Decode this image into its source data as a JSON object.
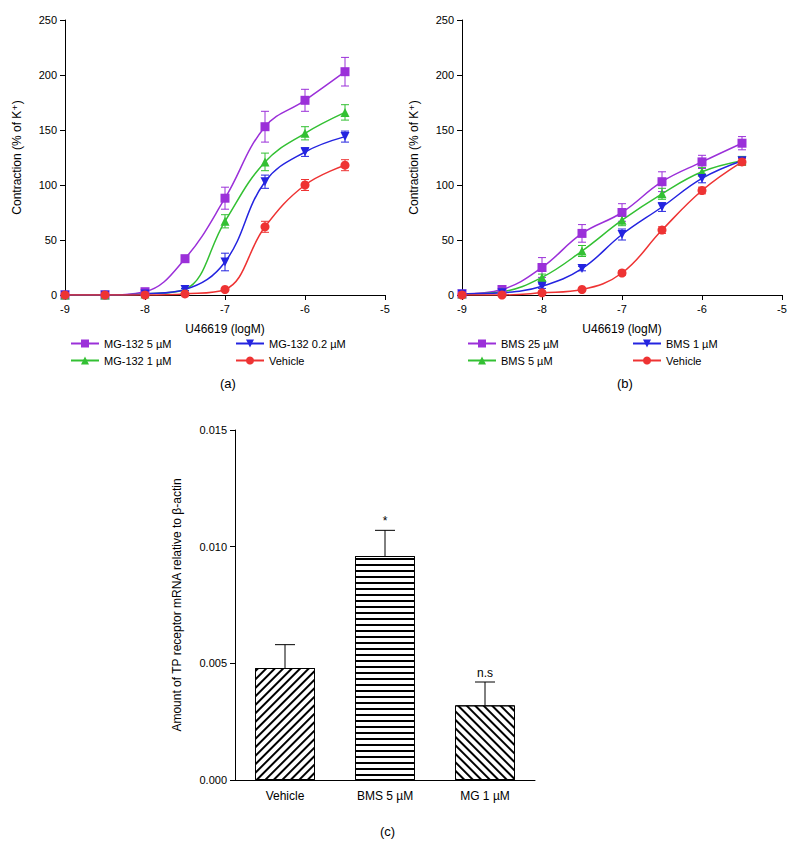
{
  "chart_data": [
    {
      "type": "line",
      "panel": "(a)",
      "x_label": "U46619 (logM)",
      "y_label": "Contraction (% of K⁺)",
      "x": [
        -9,
        -8.5,
        -8,
        -7.5,
        -7,
        -6.5,
        -6,
        -5.5
      ],
      "xlim": [
        -9,
        -5
      ],
      "xticks": [
        -9,
        -8,
        -7,
        -6,
        -5
      ],
      "ylim": [
        0,
        250
      ],
      "yticks": [
        0,
        50,
        100,
        150,
        200,
        250
      ],
      "grid": false,
      "legend": "bottom",
      "series": [
        {
          "name": "MG-132 5 µM",
          "color": "#9b30d9",
          "marker": "square",
          "values": [
            0,
            0,
            3,
            33,
            88,
            153,
            177,
            203
          ],
          "errors": [
            0,
            0,
            1,
            3,
            10,
            14,
            10,
            13
          ]
        },
        {
          "name": "MG-132 1 µM",
          "color": "#33c033",
          "marker": "triangle",
          "values": [
            0,
            0,
            1,
            5,
            67,
            121,
            147,
            166
          ],
          "errors": [
            0,
            0,
            1,
            1,
            6,
            8,
            6,
            7
          ]
        },
        {
          "name": "MG-132 0.2 µM",
          "color": "#2424e0",
          "marker": "triangle-down",
          "values": [
            0,
            0,
            1,
            5,
            30,
            103,
            130,
            144
          ],
          "errors": [
            0,
            0,
            1,
            1,
            8,
            6,
            4,
            5
          ]
        },
        {
          "name": "Vehicle",
          "color": "#ee3333",
          "marker": "circle",
          "values": [
            0,
            0,
            0,
            1,
            5,
            62,
            100,
            118
          ],
          "errors": [
            0,
            0,
            0,
            0,
            1,
            5,
            5,
            5
          ]
        }
      ]
    },
    {
      "type": "line",
      "panel": "(b)",
      "x_label": "U46619 (logM)",
      "y_label": "Contraction (% of K⁺)",
      "x": [
        -9,
        -8.5,
        -8,
        -7.5,
        -7,
        -6.5,
        -6,
        -5.5
      ],
      "xlim": [
        -9,
        -5
      ],
      "xticks": [
        -9,
        -8,
        -7,
        -6,
        -5
      ],
      "ylim": [
        0,
        250
      ],
      "yticks": [
        0,
        50,
        100,
        150,
        200,
        250
      ],
      "grid": false,
      "legend": "bottom",
      "series": [
        {
          "name": "BMS 25 µM",
          "color": "#9b30d9",
          "marker": "square",
          "values": [
            1,
            5,
            25,
            56,
            75,
            103,
            121,
            138
          ],
          "errors": [
            0,
            2,
            9,
            8,
            8,
            9,
            6,
            6
          ]
        },
        {
          "name": "BMS 5 µM",
          "color": "#33c033",
          "marker": "triangle",
          "values": [
            1,
            3,
            16,
            40,
            68,
            92,
            112,
            122
          ],
          "errors": [
            0,
            1,
            3,
            5,
            5,
            5,
            4,
            4
          ]
        },
        {
          "name": "BMS 1 µM",
          "color": "#2424e0",
          "marker": "triangle-down",
          "values": [
            1,
            2,
            8,
            24,
            55,
            80,
            106,
            122
          ],
          "errors": [
            0,
            1,
            2,
            2,
            5,
            4,
            4,
            3
          ]
        },
        {
          "name": "Vehicle",
          "color": "#ee3333",
          "marker": "circle",
          "values": [
            0,
            0,
            2,
            5,
            20,
            59,
            95,
            121
          ],
          "errors": [
            0,
            0,
            0,
            1,
            2,
            3,
            3,
            3
          ]
        }
      ]
    },
    {
      "type": "bar",
      "panel": "(c)",
      "y_label": "Amount of TP receptor mRNA relative to β-actin",
      "categories": [
        "Vehicle",
        "BMS 5 µM",
        "MG 1 µM"
      ],
      "values": [
        0.0048,
        0.0096,
        0.0032
      ],
      "errors": [
        0.001,
        0.0011,
        0.001
      ],
      "color": "#000000",
      "ylim": [
        0,
        0.015
      ],
      "yticks": [
        {
          "value": 0,
          "label": "0.000"
        },
        {
          "value": 0.005,
          "label": "0.005"
        },
        {
          "value": 0.01,
          "label": "0.010"
        },
        {
          "value": 0.015,
          "label": "0.015"
        }
      ],
      "grid": false,
      "annotations": [
        {
          "category": "BMS 5 µM",
          "text": "*"
        },
        {
          "category": "MG 1 µM",
          "text": "n.s"
        }
      ]
    }
  ]
}
